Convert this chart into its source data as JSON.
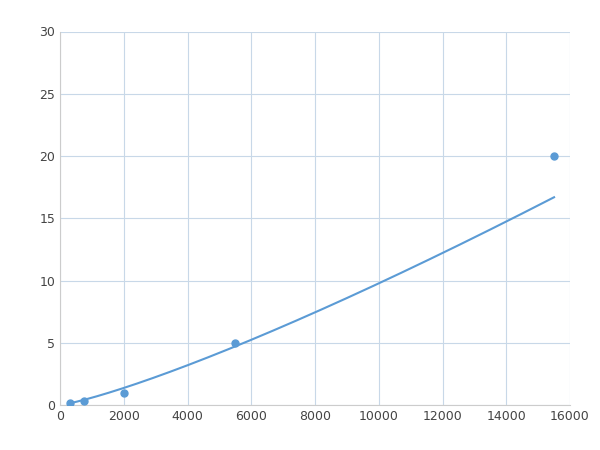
{
  "x_points": [
    300,
    750,
    2000,
    5500,
    15500
  ],
  "y_points": [
    0.2,
    0.3,
    1.0,
    5.0,
    20.0
  ],
  "line_color": "#5b9bd5",
  "marker_color": "#5b9bd5",
  "marker_size": 5,
  "line_width": 1.5,
  "xlim": [
    0,
    16000
  ],
  "ylim": [
    0,
    30
  ],
  "xticks": [
    0,
    2000,
    4000,
    6000,
    8000,
    10000,
    12000,
    14000,
    16000
  ],
  "yticks": [
    0,
    5,
    10,
    15,
    20,
    25,
    30
  ],
  "grid_color": "#c8d8e8",
  "background_color": "#ffffff",
  "figure_width": 6.0,
  "figure_height": 4.5,
  "dpi": 100
}
